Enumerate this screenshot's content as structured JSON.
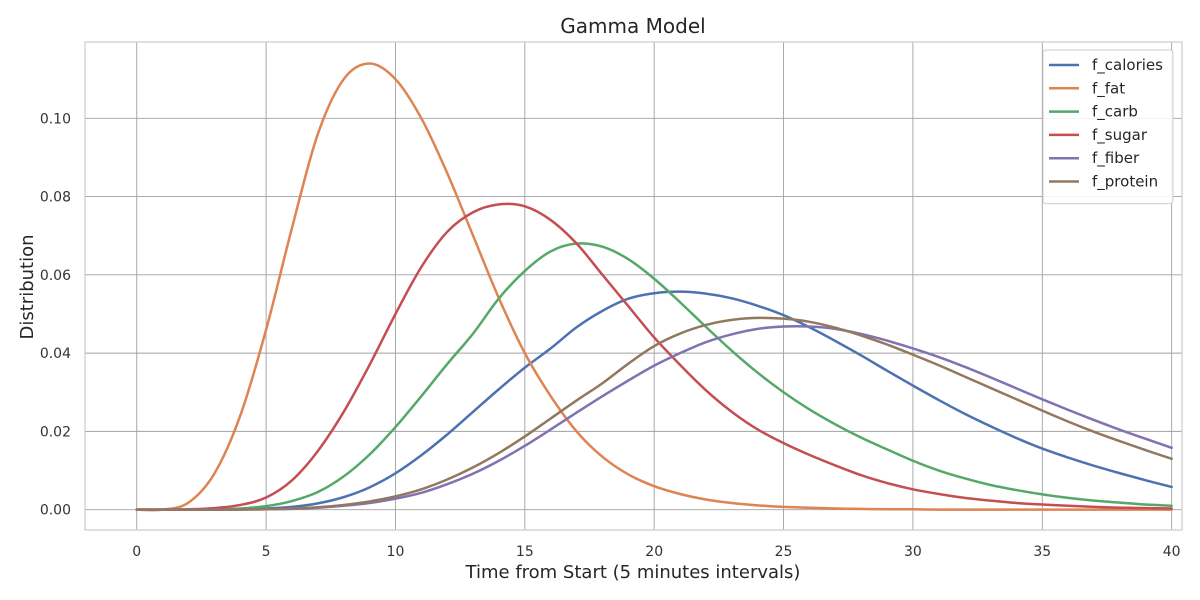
{
  "chart_data": {
    "type": "line",
    "title": "Gamma Model",
    "xlabel": "Time from Start (5 minutes intervals)",
    "ylabel": "Distribution",
    "xlim": [
      -2,
      40.4
    ],
    "ylim": [
      -0.0052,
      0.1195
    ],
    "xticks": [
      0,
      5,
      10,
      15,
      20,
      25,
      30,
      35,
      40
    ],
    "xtick_labels": [
      "0",
      "5",
      "10",
      "15",
      "20",
      "25",
      "30",
      "35",
      "40"
    ],
    "yticks": [
      0.0,
      0.02,
      0.04,
      0.06,
      0.08,
      0.1
    ],
    "ytick_labels": [
      "0.00",
      "0.02",
      "0.04",
      "0.06",
      "0.08",
      "0.10"
    ],
    "grid": true,
    "legend_position": "top-right",
    "x": [
      0,
      1,
      2,
      3,
      4,
      5,
      6,
      7,
      8,
      9,
      10,
      11,
      12,
      13,
      14,
      15,
      16,
      17,
      18,
      19,
      20,
      21,
      22,
      23,
      24,
      25,
      26,
      27,
      28,
      29,
      30,
      31,
      32,
      33,
      34,
      35,
      36,
      37,
      38,
      39,
      40
    ],
    "series": [
      {
        "name": "f_calories",
        "color": "#4c72b0",
        "values": [
          0.0,
          0.0,
          0.0,
          0.0,
          0.0001,
          0.0003,
          0.0007,
          0.0016,
          0.0032,
          0.0057,
          0.0093,
          0.0139,
          0.0192,
          0.025,
          0.0308,
          0.0363,
          0.0412,
          0.0466,
          0.0508,
          0.0539,
          0.0553,
          0.0557,
          0.0552,
          0.054,
          0.0521,
          0.0497,
          0.0466,
          0.0431,
          0.0394,
          0.0355,
          0.0317,
          0.028,
          0.0245,
          0.0213,
          0.0183,
          0.0156,
          0.0133,
          0.0112,
          0.0093,
          0.0075,
          0.0058
        ]
      },
      {
        "name": "f_fat",
        "color": "#dd8452",
        "values": [
          0.0,
          0.0,
          0.0018,
          0.0092,
          0.024,
          0.046,
          0.072,
          0.096,
          0.11,
          0.114,
          0.11,
          0.1,
          0.086,
          0.07,
          0.054,
          0.04,
          0.029,
          0.02,
          0.0135,
          0.009,
          0.006,
          0.004,
          0.0026,
          0.0017,
          0.0011,
          0.0007,
          0.0005,
          0.0003,
          0.0002,
          0.0001,
          0.0001,
          0.0,
          0.0,
          0.0,
          0.0,
          0.0,
          0.0,
          0.0,
          0.0,
          0.0,
          0.0
        ]
      },
      {
        "name": "f_carb",
        "color": "#55a868",
        "values": [
          0.0,
          0.0,
          0.0,
          0.0001,
          0.0003,
          0.0009,
          0.0022,
          0.0045,
          0.0085,
          0.0141,
          0.0211,
          0.029,
          0.0372,
          0.045,
          0.054,
          0.061,
          0.066,
          0.068,
          0.0672,
          0.064,
          0.059,
          0.053,
          0.0467,
          0.0406,
          0.035,
          0.03,
          0.0256,
          0.0218,
          0.0184,
          0.0154,
          0.0125,
          0.01,
          0.008,
          0.0063,
          0.005,
          0.0039,
          0.003,
          0.0023,
          0.0018,
          0.0013,
          0.001
        ]
      },
      {
        "name": "f_sugar",
        "color": "#c44e52",
        "values": [
          0.0,
          0.0,
          0.0001,
          0.0004,
          0.0012,
          0.0031,
          0.0075,
          0.015,
          0.025,
          0.037,
          0.05,
          0.062,
          0.071,
          0.076,
          0.078,
          0.0775,
          0.074,
          0.068,
          0.06,
          0.052,
          0.044,
          0.037,
          0.0305,
          0.025,
          0.0205,
          0.017,
          0.014,
          0.0113,
          0.0088,
          0.0068,
          0.0052,
          0.004,
          0.003,
          0.0023,
          0.0017,
          0.0013,
          0.001,
          0.0007,
          0.0005,
          0.0004,
          0.0003
        ]
      },
      {
        "name": "f_fiber",
        "color": "#8172b2",
        "values": [
          0.0,
          0.0,
          0.0,
          0.0,
          0.0,
          0.0001,
          0.0002,
          0.0005,
          0.001,
          0.0017,
          0.0028,
          0.0043,
          0.0065,
          0.0092,
          0.0125,
          0.0163,
          0.0205,
          0.0248,
          0.029,
          0.033,
          0.0368,
          0.04,
          0.0428,
          0.0448,
          0.0462,
          0.0468,
          0.0468,
          0.0462,
          0.0449,
          0.0432,
          0.0412,
          0.039,
          0.0365,
          0.0338,
          0.031,
          0.0282,
          0.0255,
          0.0229,
          0.0204,
          0.0181,
          0.0158
        ]
      },
      {
        "name": "f_protein",
        "color": "#937860",
        "values": [
          0.0,
          0.0,
          0.0,
          0.0,
          0.0,
          0.0001,
          0.0003,
          0.0006,
          0.0012,
          0.0021,
          0.0034,
          0.0052,
          0.0077,
          0.0108,
          0.0145,
          0.0187,
          0.0233,
          0.0279,
          0.0323,
          0.0373,
          0.0418,
          0.045,
          0.0472,
          0.0485,
          0.049,
          0.0488,
          0.048,
          0.0465,
          0.0445,
          0.0422,
          0.0396,
          0.0369,
          0.034,
          0.0311,
          0.0282,
          0.0253,
          0.0225,
          0.0199,
          0.0175,
          0.0152,
          0.013
        ]
      }
    ]
  }
}
